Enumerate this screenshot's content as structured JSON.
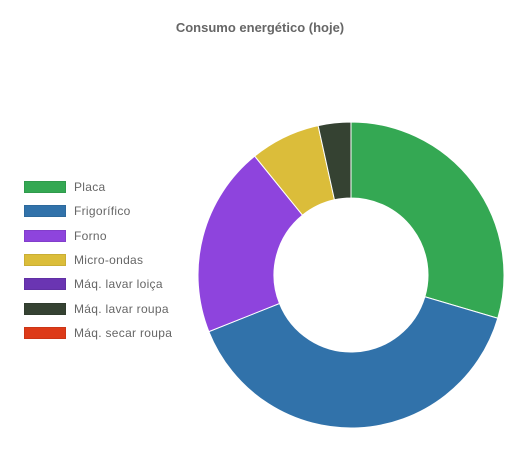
{
  "chart_data": {
    "type": "pie",
    "variant": "doughnut",
    "title": "Consumo energético (hoje)",
    "legend_position": "left",
    "categories": [
      "Placa",
      "Frigorífico",
      "Forno",
      "Micro-ondas",
      "Máq. lavar loiça",
      "Máq. lavar roupa",
      "Máq. secar roupa"
    ],
    "values": [
      30,
      40,
      20.5,
      7.5,
      0,
      3.5,
      0
    ],
    "colors": [
      "#34a853",
      "#3172aa",
      "#8e44dd",
      "#dbbd3a",
      "#6a35b2",
      "#354232",
      "#dd3a18"
    ]
  }
}
